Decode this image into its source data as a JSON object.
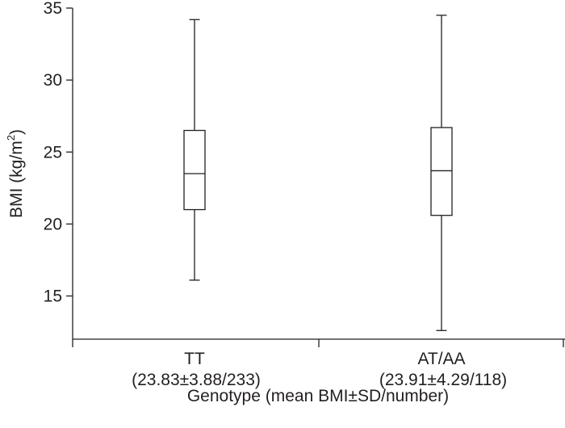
{
  "chart_data": {
    "type": "box",
    "ylabel": "BMI (kg/m",
    "ylabel_sup": "2",
    "ylabel_close": ")",
    "xlabel": "Genotype (mean BMI±SD/number)",
    "ylim": [
      12,
      35
    ],
    "yticks": [
      15,
      20,
      25,
      30,
      35
    ],
    "yticks_labels": [
      "15",
      "20",
      "25",
      "30",
      "35"
    ],
    "categories": [
      {
        "name": "TT",
        "sub": "(23.83±3.88/233)",
        "min": 16.1,
        "q1": 21.0,
        "median": 23.5,
        "q3": 26.5,
        "max": 34.2
      },
      {
        "name": "AT/AA",
        "sub": "(23.91±4.29/118)",
        "min": 12.6,
        "q1": 20.6,
        "median": 23.7,
        "q3": 26.7,
        "max": 34.5
      }
    ]
  }
}
